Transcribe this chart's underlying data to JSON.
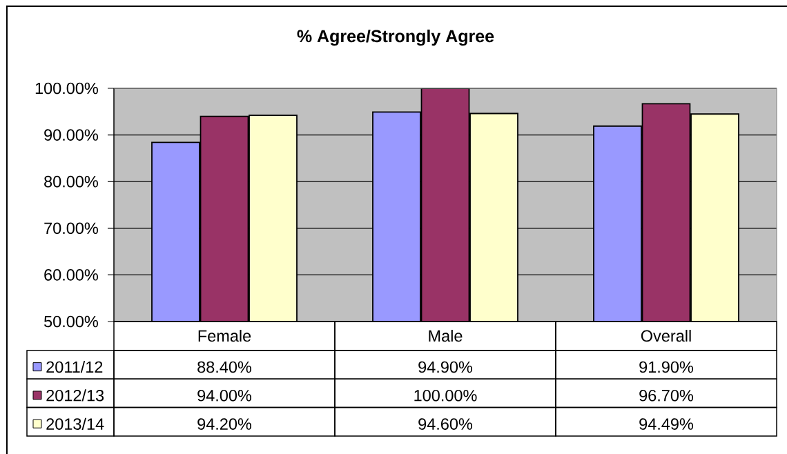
{
  "chart_data": {
    "type": "bar",
    "title": "% Agree/Strongly Agree",
    "categories": [
      "Female",
      "Male",
      "Overall"
    ],
    "series": [
      {
        "name": "2011/12",
        "color": "#9999ff",
        "values": [
          88.4,
          94.9,
          91.9
        ],
        "value_labels": [
          "88.40%",
          "94.90%",
          "91.90%"
        ]
      },
      {
        "name": "2012/13",
        "color": "#993366",
        "values": [
          94.0,
          100.0,
          96.7
        ],
        "value_labels": [
          "94.00%",
          "100.00%",
          "96.70%"
        ]
      },
      {
        "name": "2013/14",
        "color": "#ffffcc",
        "values": [
          94.2,
          94.6,
          94.49
        ],
        "value_labels": [
          "94.20%",
          "94.60%",
          "94.49%"
        ]
      }
    ],
    "ylim": [
      50,
      100
    ],
    "yticks": [
      {
        "value": 50,
        "label": "50.00%"
      },
      {
        "value": 60,
        "label": "60.00%"
      },
      {
        "value": 70,
        "label": "70.00%"
      },
      {
        "value": 80,
        "label": "80.00%"
      },
      {
        "value": 90,
        "label": "90.00%"
      },
      {
        "value": 100,
        "label": "100.00%"
      }
    ],
    "grid": "y",
    "legend": "bottom"
  }
}
